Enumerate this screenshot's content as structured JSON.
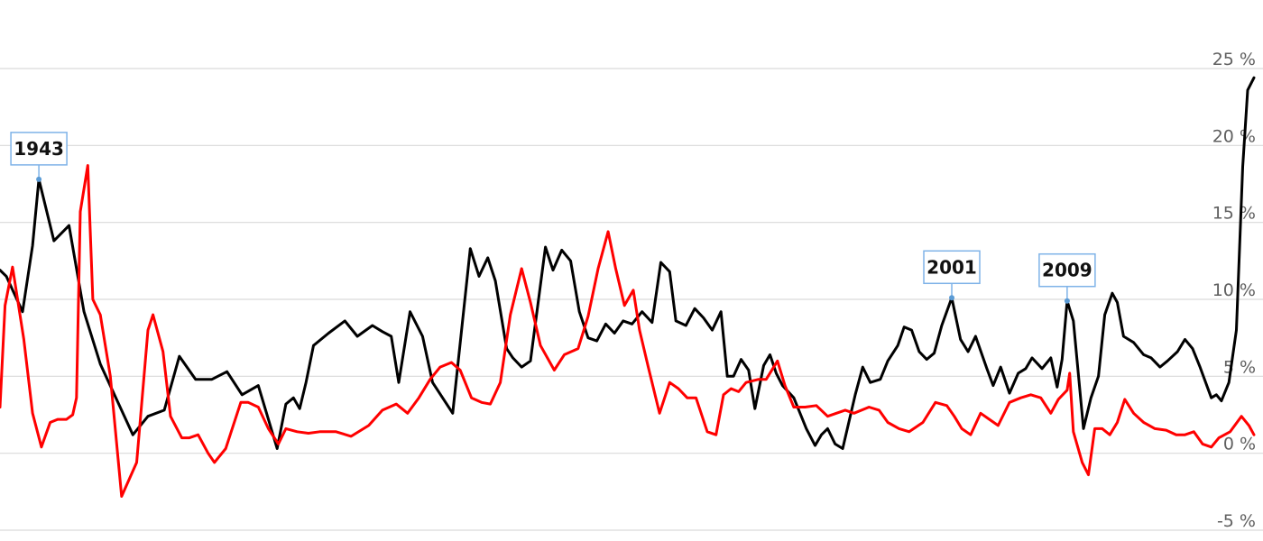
{
  "chart_data": {
    "type": "line",
    "ylim": [
      -5,
      25
    ],
    "y_ticks": [
      {
        "value": 25,
        "label": "25 %"
      },
      {
        "value": 20,
        "label": "20 %"
      },
      {
        "value": 15,
        "label": "15 %"
      },
      {
        "value": 10,
        "label": "10 %"
      },
      {
        "value": 5,
        "label": "5 %"
      },
      {
        "value": 0,
        "label": "0 %"
      },
      {
        "value": -5,
        "label": "-5 %"
      }
    ],
    "y_axis_side": "right",
    "grid": true,
    "legend": "none",
    "x_domain": [
      0,
      1000
    ],
    "series": [
      {
        "color": "#000000",
        "points": [
          [
            0,
            11.9
          ],
          [
            5,
            11.5
          ],
          [
            18,
            9.2
          ],
          [
            26,
            13.5
          ],
          [
            31,
            17.8
          ],
          [
            43,
            13.8
          ],
          [
            55,
            14.8
          ],
          [
            67,
            9.2
          ],
          [
            80,
            5.8
          ],
          [
            106,
            1.2
          ],
          [
            118,
            2.4
          ],
          [
            131,
            2.8
          ],
          [
            143,
            6.3
          ],
          [
            156,
            4.8
          ],
          [
            169,
            4.8
          ],
          [
            181,
            5.3
          ],
          [
            193,
            3.8
          ],
          [
            206,
            4.4
          ],
          [
            221,
            0.3
          ],
          [
            228,
            3.2
          ],
          [
            234,
            3.6
          ],
          [
            239,
            2.9
          ],
          [
            244,
            4.6
          ],
          [
            250,
            7.0
          ],
          [
            262,
            7.8
          ],
          [
            275,
            8.6
          ],
          [
            285,
            7.6
          ],
          [
            297,
            8.3
          ],
          [
            305,
            7.9
          ],
          [
            312,
            7.6
          ],
          [
            318,
            4.6
          ],
          [
            327,
            9.2
          ],
          [
            337,
            7.6
          ],
          [
            345,
            4.6
          ],
          [
            361,
            2.6
          ],
          [
            375,
            13.3
          ],
          [
            382,
            11.5
          ],
          [
            389,
            12.7
          ],
          [
            395,
            11.2
          ],
          [
            404,
            6.8
          ],
          [
            409,
            6.2
          ],
          [
            416,
            5.6
          ],
          [
            423,
            6.0
          ],
          [
            435,
            13.4
          ],
          [
            441,
            11.9
          ],
          [
            448,
            13.2
          ],
          [
            455,
            12.5
          ],
          [
            462,
            9.2
          ],
          [
            469,
            7.5
          ],
          [
            476,
            7.3
          ],
          [
            483,
            8.4
          ],
          [
            490,
            7.8
          ],
          [
            497,
            8.6
          ],
          [
            504,
            8.4
          ],
          [
            512,
            9.2
          ],
          [
            520,
            8.5
          ],
          [
            527,
            12.4
          ],
          [
            534,
            11.8
          ],
          [
            539,
            8.6
          ],
          [
            547,
            8.3
          ],
          [
            554,
            9.4
          ],
          [
            561,
            8.8
          ],
          [
            568,
            8.0
          ],
          [
            575,
            9.2
          ],
          [
            580,
            5.0
          ],
          [
            585,
            5.0
          ],
          [
            591,
            6.1
          ],
          [
            597,
            5.4
          ],
          [
            602,
            2.9
          ],
          [
            609,
            5.7
          ],
          [
            614,
            6.4
          ],
          [
            619,
            5.2
          ],
          [
            624,
            4.4
          ],
          [
            633,
            3.6
          ],
          [
            643,
            1.6
          ],
          [
            650,
            0.5
          ],
          [
            655,
            1.2
          ],
          [
            660,
            1.6
          ],
          [
            666,
            0.6
          ],
          [
            672,
            0.3
          ],
          [
            682,
            3.8
          ],
          [
            688,
            5.6
          ],
          [
            694,
            4.6
          ],
          [
            702,
            4.8
          ],
          [
            708,
            6.0
          ],
          [
            716,
            7.0
          ],
          [
            721,
            8.2
          ],
          [
            727,
            8.0
          ],
          [
            733,
            6.6
          ],
          [
            739,
            6.1
          ],
          [
            745,
            6.5
          ],
          [
            751,
            8.3
          ],
          [
            759,
            10.1
          ],
          [
            766,
            7.4
          ],
          [
            772,
            6.6
          ],
          [
            778,
            7.6
          ],
          [
            787,
            5.5
          ],
          [
            792,
            4.4
          ],
          [
            798,
            5.6
          ],
          [
            805,
            3.9
          ],
          [
            812,
            5.2
          ],
          [
            818,
            5.5
          ],
          [
            823,
            6.2
          ],
          [
            831,
            5.5
          ],
          [
            838,
            6.2
          ],
          [
            843,
            4.3
          ],
          [
            847,
            6.1
          ],
          [
            851,
            9.9
          ],
          [
            856,
            8.6
          ],
          [
            864,
            1.6
          ],
          [
            870,
            3.6
          ],
          [
            876,
            5.0
          ],
          [
            881,
            9.0
          ],
          [
            887,
            10.4
          ],
          [
            891,
            9.8
          ],
          [
            896,
            7.6
          ],
          [
            904,
            7.2
          ],
          [
            912,
            6.4
          ],
          [
            918,
            6.2
          ],
          [
            925,
            5.6
          ],
          [
            931,
            6.0
          ],
          [
            939,
            6.6
          ],
          [
            945,
            7.4
          ],
          [
            951,
            6.8
          ],
          [
            957,
            5.6
          ],
          [
            966,
            3.6
          ],
          [
            970,
            3.8
          ],
          [
            974,
            3.4
          ],
          [
            980,
            4.6
          ],
          [
            986,
            8.0
          ],
          [
            991,
            18.6
          ],
          [
            995,
            23.6
          ],
          [
            1000,
            24.4
          ]
        ]
      },
      {
        "color": "#ff0000",
        "points": [
          [
            0,
            3.0
          ],
          [
            4,
            9.6
          ],
          [
            10,
            12.1
          ],
          [
            19,
            7.4
          ],
          [
            26,
            2.6
          ],
          [
            33,
            0.4
          ],
          [
            40,
            2.0
          ],
          [
            46,
            2.2
          ],
          [
            53,
            2.2
          ],
          [
            58,
            2.5
          ],
          [
            61,
            3.6
          ],
          [
            64,
            15.7
          ],
          [
            70,
            18.7
          ],
          [
            74,
            10.0
          ],
          [
            80,
            9.0
          ],
          [
            88,
            5.0
          ],
          [
            97,
            -2.8
          ],
          [
            109,
            -0.6
          ],
          [
            118,
            8.0
          ],
          [
            122,
            9.0
          ],
          [
            130,
            6.6
          ],
          [
            136,
            2.4
          ],
          [
            145,
            1.0
          ],
          [
            151,
            1.0
          ],
          [
            158,
            1.2
          ],
          [
            166,
            0
          ],
          [
            171,
            -0.6
          ],
          [
            180,
            0.3
          ],
          [
            192,
            3.3
          ],
          [
            198,
            3.3
          ],
          [
            206,
            3.0
          ],
          [
            214,
            1.6
          ],
          [
            222,
            0.6
          ],
          [
            228,
            1.6
          ],
          [
            237,
            1.4
          ],
          [
            246,
            1.3
          ],
          [
            255,
            1.4
          ],
          [
            268,
            1.4
          ],
          [
            280,
            1.1
          ],
          [
            294,
            1.8
          ],
          [
            305,
            2.8
          ],
          [
            316,
            3.2
          ],
          [
            325,
            2.6
          ],
          [
            334,
            3.6
          ],
          [
            343,
            4.8
          ],
          [
            351,
            5.6
          ],
          [
            360,
            5.9
          ],
          [
            367,
            5.4
          ],
          [
            376,
            3.6
          ],
          [
            384,
            3.3
          ],
          [
            391,
            3.2
          ],
          [
            399,
            4.6
          ],
          [
            407,
            9.0
          ],
          [
            416,
            12.0
          ],
          [
            423,
            9.8
          ],
          [
            431,
            7.0
          ],
          [
            442,
            5.4
          ],
          [
            450,
            6.4
          ],
          [
            461,
            6.8
          ],
          [
            469,
            8.9
          ],
          [
            477,
            12.0
          ],
          [
            485,
            14.4
          ],
          [
            491,
            12.0
          ],
          [
            498,
            9.6
          ],
          [
            505,
            10.6
          ],
          [
            510,
            8.0
          ],
          [
            517,
            5.6
          ],
          [
            526,
            2.6
          ],
          [
            534,
            4.6
          ],
          [
            541,
            4.2
          ],
          [
            548,
            3.6
          ],
          [
            555,
            3.6
          ],
          [
            564,
            1.4
          ],
          [
            571,
            1.2
          ],
          [
            577,
            3.8
          ],
          [
            583,
            4.2
          ],
          [
            589,
            4.0
          ],
          [
            595,
            4.6
          ],
          [
            605,
            4.8
          ],
          [
            611,
            4.8
          ],
          [
            620,
            6.0
          ],
          [
            626,
            4.4
          ],
          [
            633,
            3.0
          ],
          [
            642,
            3.0
          ],
          [
            651,
            3.1
          ],
          [
            660,
            2.4
          ],
          [
            667,
            2.6
          ],
          [
            674,
            2.8
          ],
          [
            681,
            2.6
          ],
          [
            693,
            3.0
          ],
          [
            701,
            2.8
          ],
          [
            708,
            2.0
          ],
          [
            717,
            1.6
          ],
          [
            725,
            1.4
          ],
          [
            736,
            2.0
          ],
          [
            746,
            3.3
          ],
          [
            755,
            3.1
          ],
          [
            761,
            2.4
          ],
          [
            767,
            1.6
          ],
          [
            774,
            1.2
          ],
          [
            782,
            2.6
          ],
          [
            789,
            2.2
          ],
          [
            796,
            1.8
          ],
          [
            805,
            3.3
          ],
          [
            814,
            3.6
          ],
          [
            822,
            3.8
          ],
          [
            830,
            3.6
          ],
          [
            838,
            2.6
          ],
          [
            844,
            3.5
          ],
          [
            851,
            4.1
          ],
          [
            853,
            5.2
          ],
          [
            856,
            1.4
          ],
          [
            863,
            -0.6
          ],
          [
            868,
            -1.4
          ],
          [
            873,
            1.6
          ],
          [
            879,
            1.6
          ],
          [
            885,
            1.2
          ],
          [
            891,
            2.0
          ],
          [
            897,
            3.5
          ],
          [
            904,
            2.6
          ],
          [
            912,
            2.0
          ],
          [
            921,
            1.6
          ],
          [
            930,
            1.5
          ],
          [
            938,
            1.2
          ],
          [
            945,
            1.2
          ],
          [
            952,
            1.4
          ],
          [
            959,
            0.6
          ],
          [
            966,
            0.4
          ],
          [
            972,
            1.0
          ],
          [
            981,
            1.4
          ],
          [
            990,
            2.4
          ],
          [
            996,
            1.8
          ],
          [
            1000,
            1.2
          ]
        ]
      }
    ],
    "annotations": [
      {
        "label": "1943",
        "series": 0,
        "x": 31,
        "y": 17.8
      },
      {
        "label": "2001",
        "series": 0,
        "x": 759,
        "y": 10.1
      },
      {
        "label": "2009",
        "series": 0,
        "x": 851,
        "y": 9.9
      }
    ]
  }
}
